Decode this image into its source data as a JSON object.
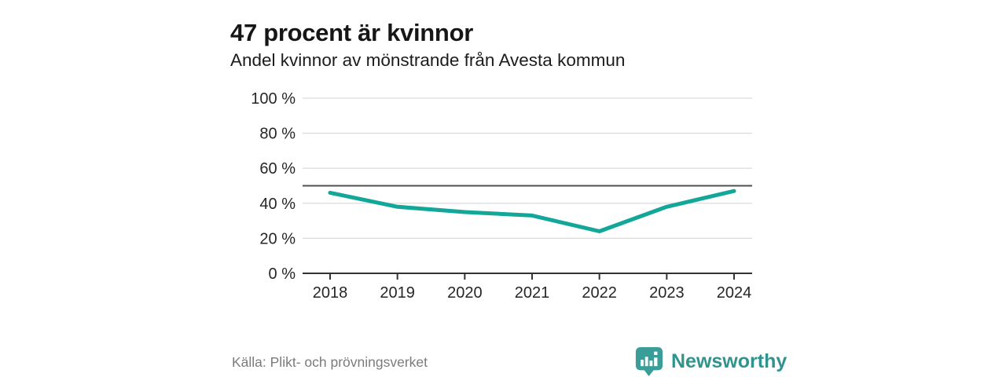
{
  "header": {
    "title": "47 procent är kvinnor",
    "subtitle": "Andel kvinnor av mönstrande från Avesta kommun"
  },
  "chart_data": {
    "type": "line",
    "title": "47 procent är kvinnor",
    "subtitle": "Andel kvinnor av mönstrande från Avesta kommun",
    "categories": [
      "2018",
      "2019",
      "2020",
      "2021",
      "2022",
      "2023",
      "2024"
    ],
    "series": [
      {
        "name": "Andel kvinnor av mönstrande",
        "values": [
          46,
          38,
          35,
          33,
          24,
          38,
          47
        ]
      }
    ],
    "ylim": [
      0,
      100
    ],
    "yticks": [
      0,
      20,
      40,
      60,
      80,
      100
    ],
    "ytick_labels": [
      "0 %",
      "20 %",
      "40 %",
      "60 %",
      "80 %",
      "100 %"
    ],
    "reference_line_y": 50,
    "grid": true,
    "legend_position": "none",
    "colors": {
      "line": "#13a79a",
      "grid": "#d9d9d9",
      "axis": "#333333",
      "reference_line": "#4f4f4f",
      "tick_text": "#262626"
    }
  },
  "footer": {
    "source": "Källa: Plikt- och prövningsverket",
    "brand_name": "Newsworthy",
    "brand_color": "#2f948d",
    "brand_icon_color": "#3a9d97"
  }
}
